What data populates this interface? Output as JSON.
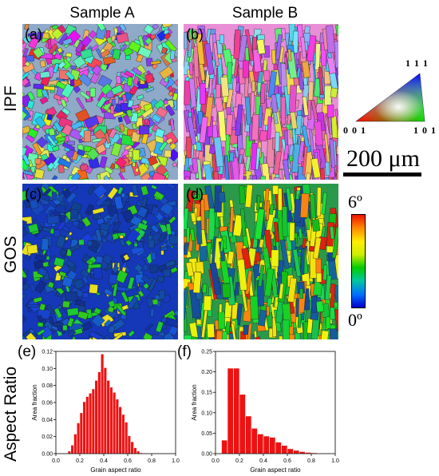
{
  "columns": {
    "a": "Sample A",
    "b": "Sample B"
  },
  "rows": {
    "ipf": "IPF",
    "gos": "GOS",
    "aspect": "Aspect Ratio"
  },
  "panels": {
    "a": "(a)",
    "b": "(b)",
    "c": "(c)",
    "d": "(d)",
    "e": "(e)",
    "f": "(f)"
  },
  "ipf_legend": {
    "top": "1 1 1",
    "left": "0 0 1",
    "right": "1 0 1"
  },
  "scale_bar": {
    "label": "200 μm"
  },
  "gos_colorbar": {
    "max": "6º",
    "min": "0º",
    "colors": [
      "#0000cc",
      "#0070ff",
      "#00c8a0",
      "#00cc00",
      "#ccee00",
      "#ffee00",
      "#ff8800",
      "#ee1100"
    ]
  },
  "bar_color": "#ee1111",
  "chart_data": [
    {
      "type": "bar",
      "panel": "(e)",
      "xlabel": "Grain aspect ratio",
      "ylabel": "Area fraction",
      "xlim": [
        0.0,
        1.0
      ],
      "ylim": [
        0.0,
        0.12
      ],
      "xticks": [
        "0.0",
        "0.2",
        "0.4",
        "0.6",
        "0.8",
        "1.0"
      ],
      "yticks": [
        "0.00",
        "0.02",
        "0.04",
        "0.06",
        "0.08",
        "0.10",
        "0.12"
      ],
      "bin_width": 0.025,
      "x": [
        0.1125,
        0.1375,
        0.1625,
        0.1875,
        0.2125,
        0.2375,
        0.2625,
        0.2875,
        0.3125,
        0.3375,
        0.3625,
        0.3875,
        0.4125,
        0.4375,
        0.4625,
        0.4875,
        0.5125,
        0.5375,
        0.5625,
        0.5875,
        0.6125,
        0.6375,
        0.6625,
        0.6875,
        0.7125
      ],
      "values": [
        0.003,
        0.01,
        0.023,
        0.036,
        0.048,
        0.061,
        0.067,
        0.071,
        0.076,
        0.086,
        0.096,
        0.117,
        0.101,
        0.086,
        0.078,
        0.072,
        0.064,
        0.055,
        0.046,
        0.037,
        0.021,
        0.014,
        0.007,
        0.003,
        0.001
      ]
    },
    {
      "type": "bar",
      "panel": "(f)",
      "xlabel": "Grain aspect ratio",
      "ylabel": "Area fraction",
      "xlim": [
        0.0,
        1.0
      ],
      "ylim": [
        0.0,
        0.25
      ],
      "xticks": [
        "0.0",
        "0.2",
        "0.4",
        "0.6",
        "0.8",
        "1.0"
      ],
      "yticks": [
        "0.00",
        "0.05",
        "0.10",
        "0.15",
        "0.20",
        "0.25"
      ],
      "bin_width": 0.05,
      "x": [
        0.075,
        0.125,
        0.175,
        0.225,
        0.275,
        0.325,
        0.375,
        0.425,
        0.475,
        0.525,
        0.575,
        0.625,
        0.675,
        0.725,
        0.775,
        0.825,
        0.875,
        0.925
      ],
      "values": [
        0.033,
        0.209,
        0.209,
        0.145,
        0.092,
        0.062,
        0.048,
        0.043,
        0.04,
        0.028,
        0.02,
        0.012,
        0.008,
        0.005,
        0.003,
        0.002,
        0.001,
        0.001
      ]
    }
  ]
}
